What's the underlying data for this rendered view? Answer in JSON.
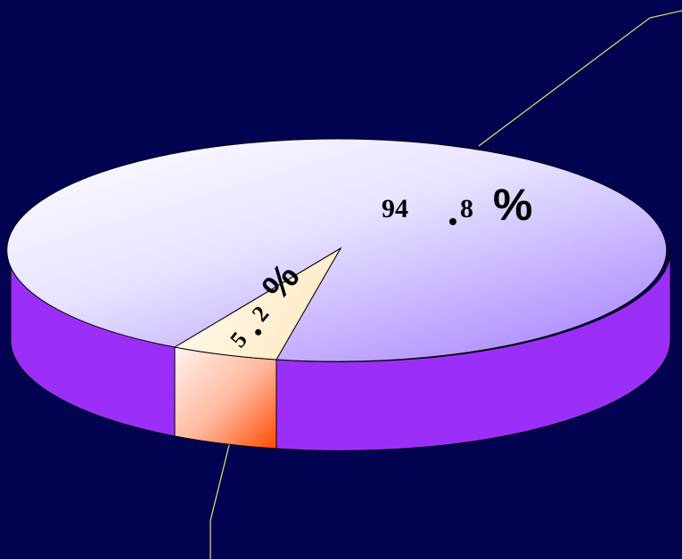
{
  "chart_data": {
    "type": "pie",
    "style": "3d",
    "categories": [
      "",
      ""
    ],
    "values": [
      94.8,
      5.2
    ],
    "data_labels": [
      "94.8%",
      "5.2%"
    ],
    "colors": {
      "major_top": "#eeeaff",
      "major_side": "#9b2ff7",
      "minor_top": "#fff1d8",
      "minor_side": "#ff5a10",
      "leader_lines": "#e8e070",
      "background": "#020452"
    }
  },
  "labels": {
    "major_int": "94",
    "major_frac": "8",
    "major_pct": "%",
    "minor_int": "5",
    "minor_frac": "2",
    "minor_pct": "%"
  }
}
